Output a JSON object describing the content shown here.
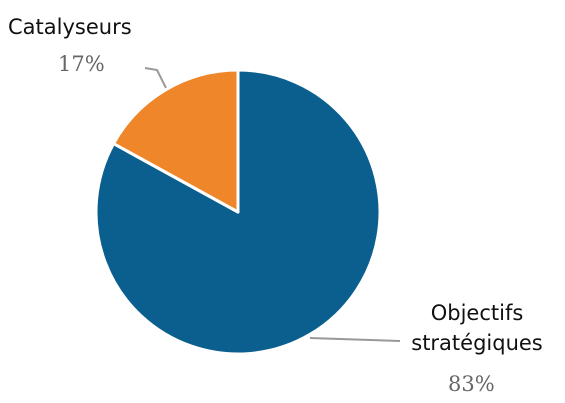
{
  "chart_data": {
    "type": "pie",
    "categories": [
      "Objectifs stratégiques",
      "Catalyseurs"
    ],
    "values": [
      83,
      17
    ],
    "value_labels": [
      "83%",
      "17%"
    ],
    "colors": [
      "#0b5f8e",
      "#f0862a"
    ]
  }
}
